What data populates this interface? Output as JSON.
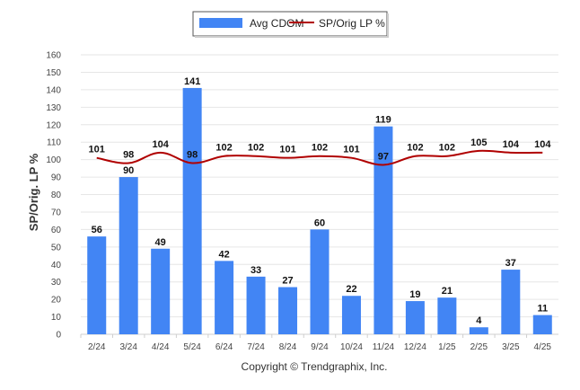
{
  "colors": {
    "bar": "#4285f4",
    "line": "#b00000",
    "grid": "#e6e6e6",
    "axis": "#cfcfcf"
  },
  "legend": {
    "bar_label": "Avg CDOM",
    "line_label": "SP/Orig LP %"
  },
  "footer": {
    "copyright": "Copyright © Trendgraphix, Inc."
  },
  "chart_data": {
    "type": "bar",
    "categories": [
      "2/24",
      "3/24",
      "4/24",
      "5/24",
      "6/24",
      "7/24",
      "8/24",
      "9/24",
      "10/24",
      "11/24",
      "12/24",
      "1/25",
      "2/25",
      "3/25",
      "4/25"
    ],
    "series": [
      {
        "name": "Avg CDOM",
        "type": "bar",
        "values": [
          56,
          90,
          49,
          141,
          42,
          33,
          27,
          60,
          22,
          119,
          19,
          21,
          4,
          37,
          11
        ]
      },
      {
        "name": "SP/Orig LP %",
        "type": "line",
        "values": [
          101,
          98,
          104,
          98,
          102,
          102,
          101,
          102,
          101,
          97,
          102,
          102,
          105,
          104,
          104
        ]
      }
    ],
    "ylabel": "SP/Orig. LP %",
    "xlabel": "",
    "ylim": [
      0,
      160
    ],
    "yticks": [
      0,
      10,
      20,
      30,
      40,
      50,
      60,
      70,
      80,
      90,
      100,
      110,
      120,
      130,
      140,
      150,
      160
    ],
    "grid": true,
    "legend_position": "top-center"
  }
}
